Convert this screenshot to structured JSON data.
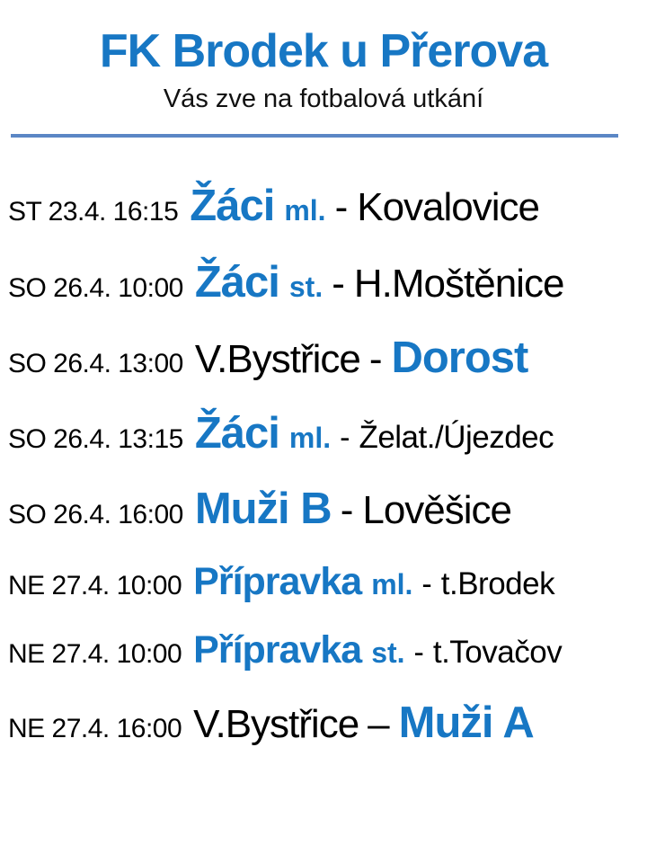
{
  "header": {
    "title": "FK Brodek u Přerova",
    "subtitle": "Vás zve na fotbalová utkání"
  },
  "colors": {
    "accent_blue": "#1777C4",
    "divider_blue": "#5B87C5",
    "text_black": "#000000",
    "background": "#ffffff"
  },
  "matches": [
    {
      "date": "ST 23.4. 16:15",
      "team": "Žáci",
      "qualifier": "ml.",
      "separator": "-",
      "opponent": "Kovalovice"
    },
    {
      "date": "SO 26.4. 10:00",
      "team": "Žáci",
      "qualifier": "st.",
      "separator": "-",
      "opponent": "H.Moštěnice"
    },
    {
      "date": "SO 26.4. 13:00",
      "home": "V.Bystřice",
      "separator": "-",
      "team": "Dorost"
    },
    {
      "date": "SO 26.4. 13:15",
      "team": "Žáci",
      "qualifier": "ml.",
      "separator": "-",
      "opponent": "Želat./Újezdec"
    },
    {
      "date": "SO 26.4. 16:00",
      "team": "Muži B",
      "separator": "-",
      "opponent": "Lověšice"
    },
    {
      "date": "NE 27.4. 10:00",
      "team": "Přípravka",
      "qualifier": "ml.",
      "separator": "-",
      "opponent": "t.Brodek"
    },
    {
      "date": "NE 27.4. 10:00",
      "team": "Přípravka",
      "qualifier": "st.",
      "separator": "-",
      "opponent": "t.Tovačov"
    },
    {
      "date": "NE 27.4. 16:00",
      "home": "V.Bystřice",
      "separator": "–",
      "team": "Muži A"
    }
  ]
}
